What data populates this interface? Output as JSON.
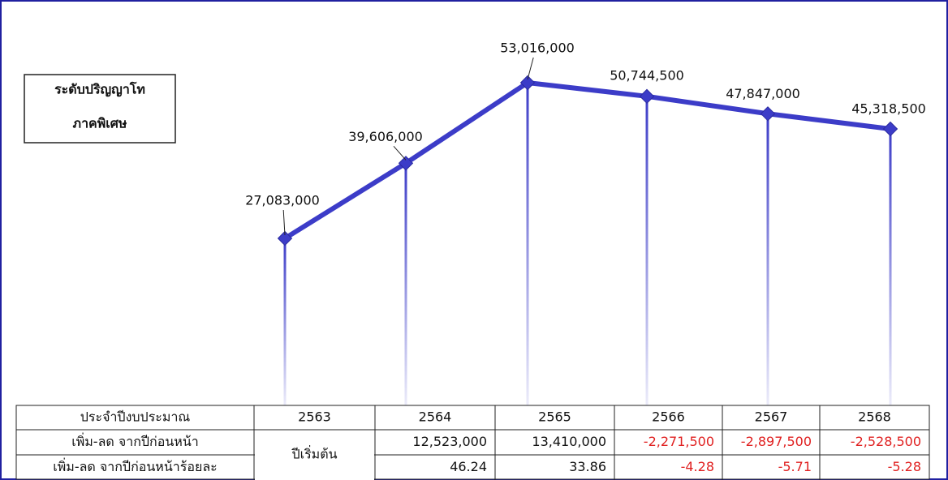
{
  "chart_data": {
    "type": "line",
    "title_lines": [
      "ระดับปริญญาโท",
      "ภาคพิเศษ"
    ],
    "categories": [
      "2563",
      "2564",
      "2565",
      "2566",
      "2567",
      "2568"
    ],
    "values": [
      27083000,
      39606000,
      53016000,
      50744500,
      47847000,
      45318500
    ],
    "value_labels": [
      "27,083,000",
      "39,606,000",
      "53,016,000",
      "50,744,500",
      "47,847,000",
      "45,318,500"
    ],
    "color": "#3c3cc8"
  },
  "table": {
    "header_label": "ประจำปีงบประมาณ",
    "change_label": "เพิ่ม-ลด จากปีก่อนหน้า",
    "percent_label": "เพิ่ม-ลด จากปีก่อนหน้าร้อยละ",
    "start_note": "ปีเริ่มต้น",
    "change": [
      "12,523,000",
      "13,410,000",
      "-2,271,500",
      "-2,897,500",
      "-2,528,500"
    ],
    "percent": [
      "46.24",
      "33.86",
      "-4.28",
      "-5.71",
      "-5.28"
    ]
  }
}
